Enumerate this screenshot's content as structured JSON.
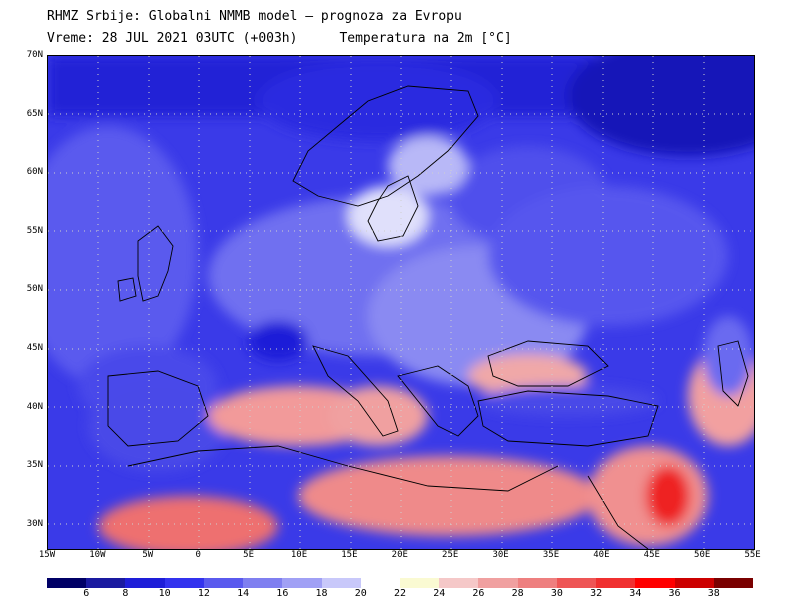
{
  "header": {
    "line1": "RHMZ Srbije: Globalni NMMB model — prognoza za Evropu",
    "line2_left": "Vreme: 28 JUL 2021 03UTC (+003h)",
    "line2_right": "Temperatura na 2m [°C]"
  },
  "lat_ticks": [
    "70N",
    "65N",
    "60N",
    "55N",
    "50N",
    "45N",
    "40N",
    "35N",
    "30N"
  ],
  "lon_ticks": [
    "15W",
    "10W",
    "5W",
    "0",
    "5E",
    "10E",
    "15E",
    "20E",
    "25E",
    "30E",
    "35E",
    "40E",
    "45E",
    "50E",
    "55E"
  ],
  "colorbar": {
    "colors": [
      "#000066",
      "#1a1aa0",
      "#1e1ed8",
      "#3333ee",
      "#5a5aee",
      "#7f7ff0",
      "#a0a0f5",
      "#c8c8fa",
      "#ffffff",
      "#fafad2",
      "#f5c8c8",
      "#f0a0a0",
      "#ee7f7f",
      "#ee5555",
      "#f03030",
      "#ff0000",
      "#cc0000",
      "#7a0000"
    ],
    "labels": [
      "6",
      "8",
      "10",
      "12",
      "14",
      "16",
      "18",
      "20",
      "22",
      "24",
      "26",
      "28",
      "30",
      "32",
      "34",
      "36",
      "38"
    ]
  }
}
